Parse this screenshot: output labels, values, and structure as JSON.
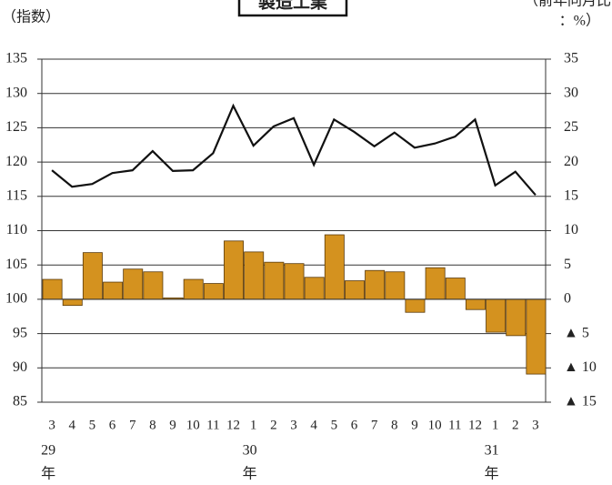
{
  "chart_data": {
    "type": "combo",
    "title": "製造工業",
    "y_label": "（指数）",
    "y2_label": [
      "（前年同月比",
      "：%）"
    ],
    "categories": [
      "3",
      "4",
      "5",
      "6",
      "7",
      "8",
      "9",
      "10",
      "11",
      "12",
      "1",
      "2",
      "3",
      "4",
      "5",
      "6",
      "7",
      "8",
      "9",
      "10",
      "11",
      "12",
      "1",
      "2",
      "3"
    ],
    "year_labels": [
      "29",
      null,
      null,
      null,
      null,
      null,
      null,
      null,
      null,
      null,
      "30",
      null,
      null,
      null,
      null,
      null,
      null,
      null,
      null,
      null,
      null,
      null,
      "31",
      null,
      null
    ],
    "year_unit": "年",
    "ylim": [
      85,
      135
    ],
    "yticks": [
      85,
      90,
      95,
      100,
      105,
      110,
      115,
      120,
      125,
      130,
      135
    ],
    "y2lim": [
      -15,
      35
    ],
    "y2ticks": [
      {
        "value": -15,
        "label": "▲ 15"
      },
      {
        "value": -10,
        "label": "▲ 10"
      },
      {
        "value": -5,
        "label": "▲ 5"
      },
      0,
      5,
      10,
      15,
      20,
      25,
      30,
      35
    ],
    "grid": true,
    "series": [
      {
        "type": "bar",
        "axis": "y2",
        "color": "#d4921f",
        "values": [
          2.9,
          -0.9,
          6.8,
          2.5,
          4.4,
          4.0,
          0.2,
          2.9,
          2.3,
          8.5,
          6.9,
          5.4,
          5.2,
          3.2,
          9.4,
          2.7,
          4.2,
          4.0,
          -1.9,
          4.6,
          3.1,
          -1.5,
          -4.8,
          -5.3,
          -10.9
        ]
      },
      {
        "type": "line",
        "axis": "y",
        "color": "#111111",
        "values": [
          118.8,
          116.4,
          116.8,
          118.4,
          118.8,
          121.6,
          118.7,
          118.8,
          121.3,
          128.2,
          122.4,
          125.2,
          126.4,
          119.6,
          126.2,
          124.4,
          122.3,
          124.3,
          122.1,
          122.7,
          123.7,
          126.2,
          116.6,
          118.6,
          115.2
        ]
      }
    ]
  }
}
